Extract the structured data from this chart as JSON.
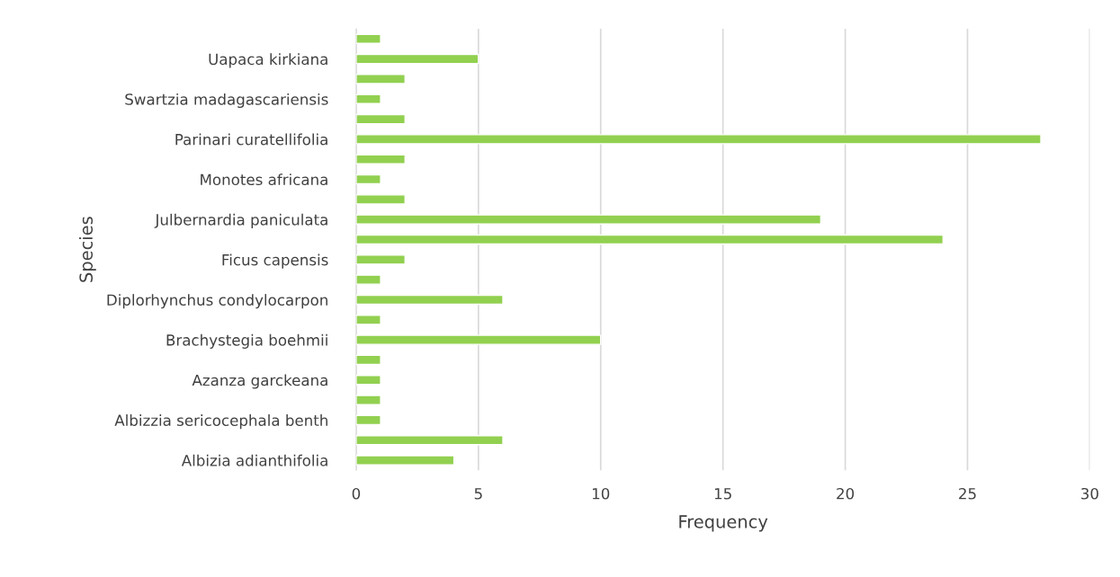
{
  "chart_data": {
    "type": "bar",
    "orientation": "horizontal",
    "xlabel": "Frequency",
    "ylabel": "Species",
    "categories": [
      null,
      "Uapaca kirkiana",
      null,
      "Swartzia madagascariensis",
      null,
      "Parinari curatellifolia",
      null,
      "Monotes africana",
      null,
      "Julbernardia paniculata",
      null,
      "Ficus capensis",
      null,
      "Diplorhynchus condylocarpon",
      null,
      "Brachystegia boehmii",
      null,
      "Azanza garckeana",
      null,
      "Albizzia sericocephala benth",
      null,
      "Albizia adianthifolia"
    ],
    "values": [
      1,
      5,
      2,
      1,
      2,
      28,
      2,
      1,
      2,
      19,
      24,
      2,
      1,
      6,
      1,
      10,
      1,
      1,
      1,
      1,
      6,
      4
    ],
    "color": "#92d050",
    "xlim": [
      0,
      30
    ],
    "xticks": [
      0,
      5,
      10,
      15,
      20,
      25,
      30
    ],
    "grid": "x",
    "legend": false
  }
}
